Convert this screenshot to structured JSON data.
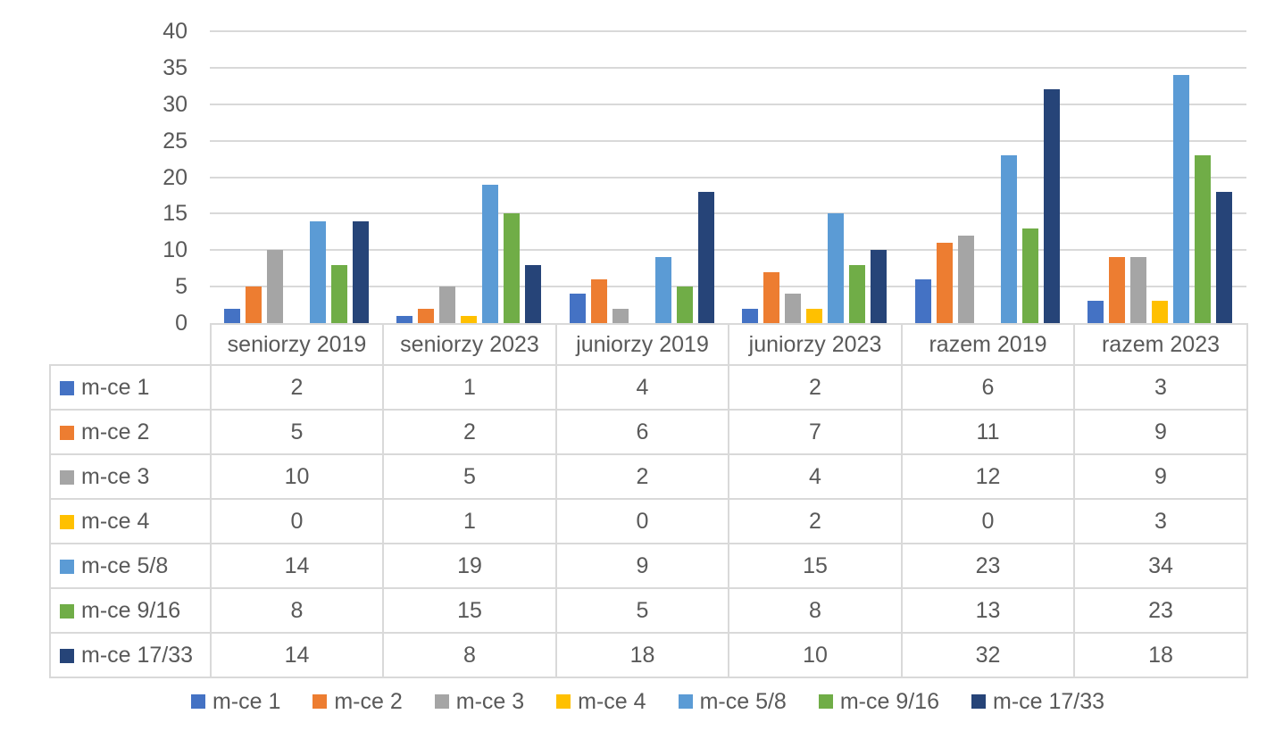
{
  "chart_data": {
    "type": "bar",
    "title": "",
    "xlabel": "",
    "ylabel": "",
    "categories": [
      "seniorzy 2019",
      "seniorzy 2023",
      "juniorzy 2019",
      "juniorzy 2023",
      "razem 2019",
      "razem 2023"
    ],
    "series": [
      {
        "name": "m-ce 1",
        "color": "#4472C4",
        "values": [
          2,
          1,
          4,
          2,
          6,
          3
        ]
      },
      {
        "name": "m-ce 2",
        "color": "#ED7D31",
        "values": [
          5,
          2,
          6,
          7,
          11,
          9
        ]
      },
      {
        "name": "m-ce 3",
        "color": "#A5A5A5",
        "values": [
          10,
          5,
          2,
          4,
          12,
          9
        ]
      },
      {
        "name": "m-ce 4",
        "color": "#FFC000",
        "values": [
          0,
          1,
          0,
          2,
          0,
          3
        ]
      },
      {
        "name": "m-ce 5/8",
        "color": "#5B9BD5",
        "values": [
          14,
          19,
          9,
          15,
          23,
          34
        ]
      },
      {
        "name": "m-ce 9/16",
        "color": "#70AD47",
        "values": [
          8,
          15,
          5,
          8,
          13,
          23
        ]
      },
      {
        "name": "m-ce 17/33",
        "color": "#264478",
        "values": [
          14,
          8,
          18,
          10,
          32,
          18
        ]
      }
    ],
    "ylim": [
      0,
      40
    ],
    "yticks": [
      0,
      5,
      10,
      15,
      20,
      25,
      30,
      35,
      40
    ],
    "grid": true,
    "legend_position": "bottom",
    "data_table_shown": true
  },
  "colors": {
    "text": "#595959",
    "grid": "#D9D9D9",
    "table_border": "#D9D9D9",
    "background": "#FFFFFF"
  }
}
